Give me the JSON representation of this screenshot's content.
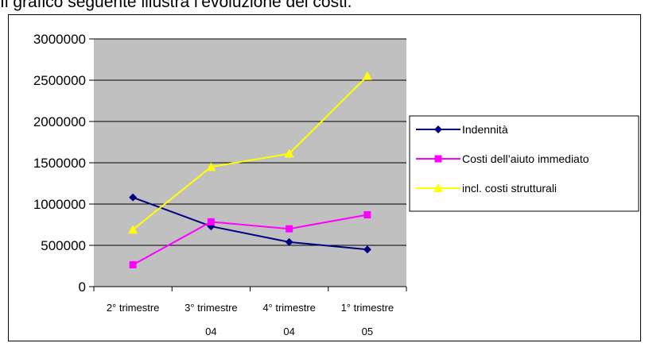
{
  "heading": "Il grafico seguente illustra l’evoluzione dei costi.",
  "chart_data": {
    "type": "line",
    "categories": [
      [
        "2° trimestre",
        ""
      ],
      [
        "3° trimestre",
        "04"
      ],
      [
        "4° trimestre",
        "04"
      ],
      [
        "1° trimestre",
        "05"
      ]
    ],
    "ylim": [
      0,
      3000000
    ],
    "yticks": [
      0,
      500000,
      1000000,
      1500000,
      2000000,
      2500000,
      3000000
    ],
    "grid": true,
    "plot_background": "#c0c0c0",
    "legend_position": "right",
    "series": [
      {
        "name": "Indennità",
        "color": "#000080",
        "marker": "diamond",
        "values": [
          1080000,
          730000,
          540000,
          450000
        ]
      },
      {
        "name": "Costi dell’aiuto immediato",
        "color": "#ff00ff",
        "marker": "square",
        "values": [
          265000,
          785000,
          700000,
          870000
        ]
      },
      {
        "name": "incl. costi strutturali",
        "color": "#ffff00",
        "marker": "triangle",
        "values": [
          690000,
          1450000,
          1610000,
          2550000
        ]
      }
    ]
  }
}
